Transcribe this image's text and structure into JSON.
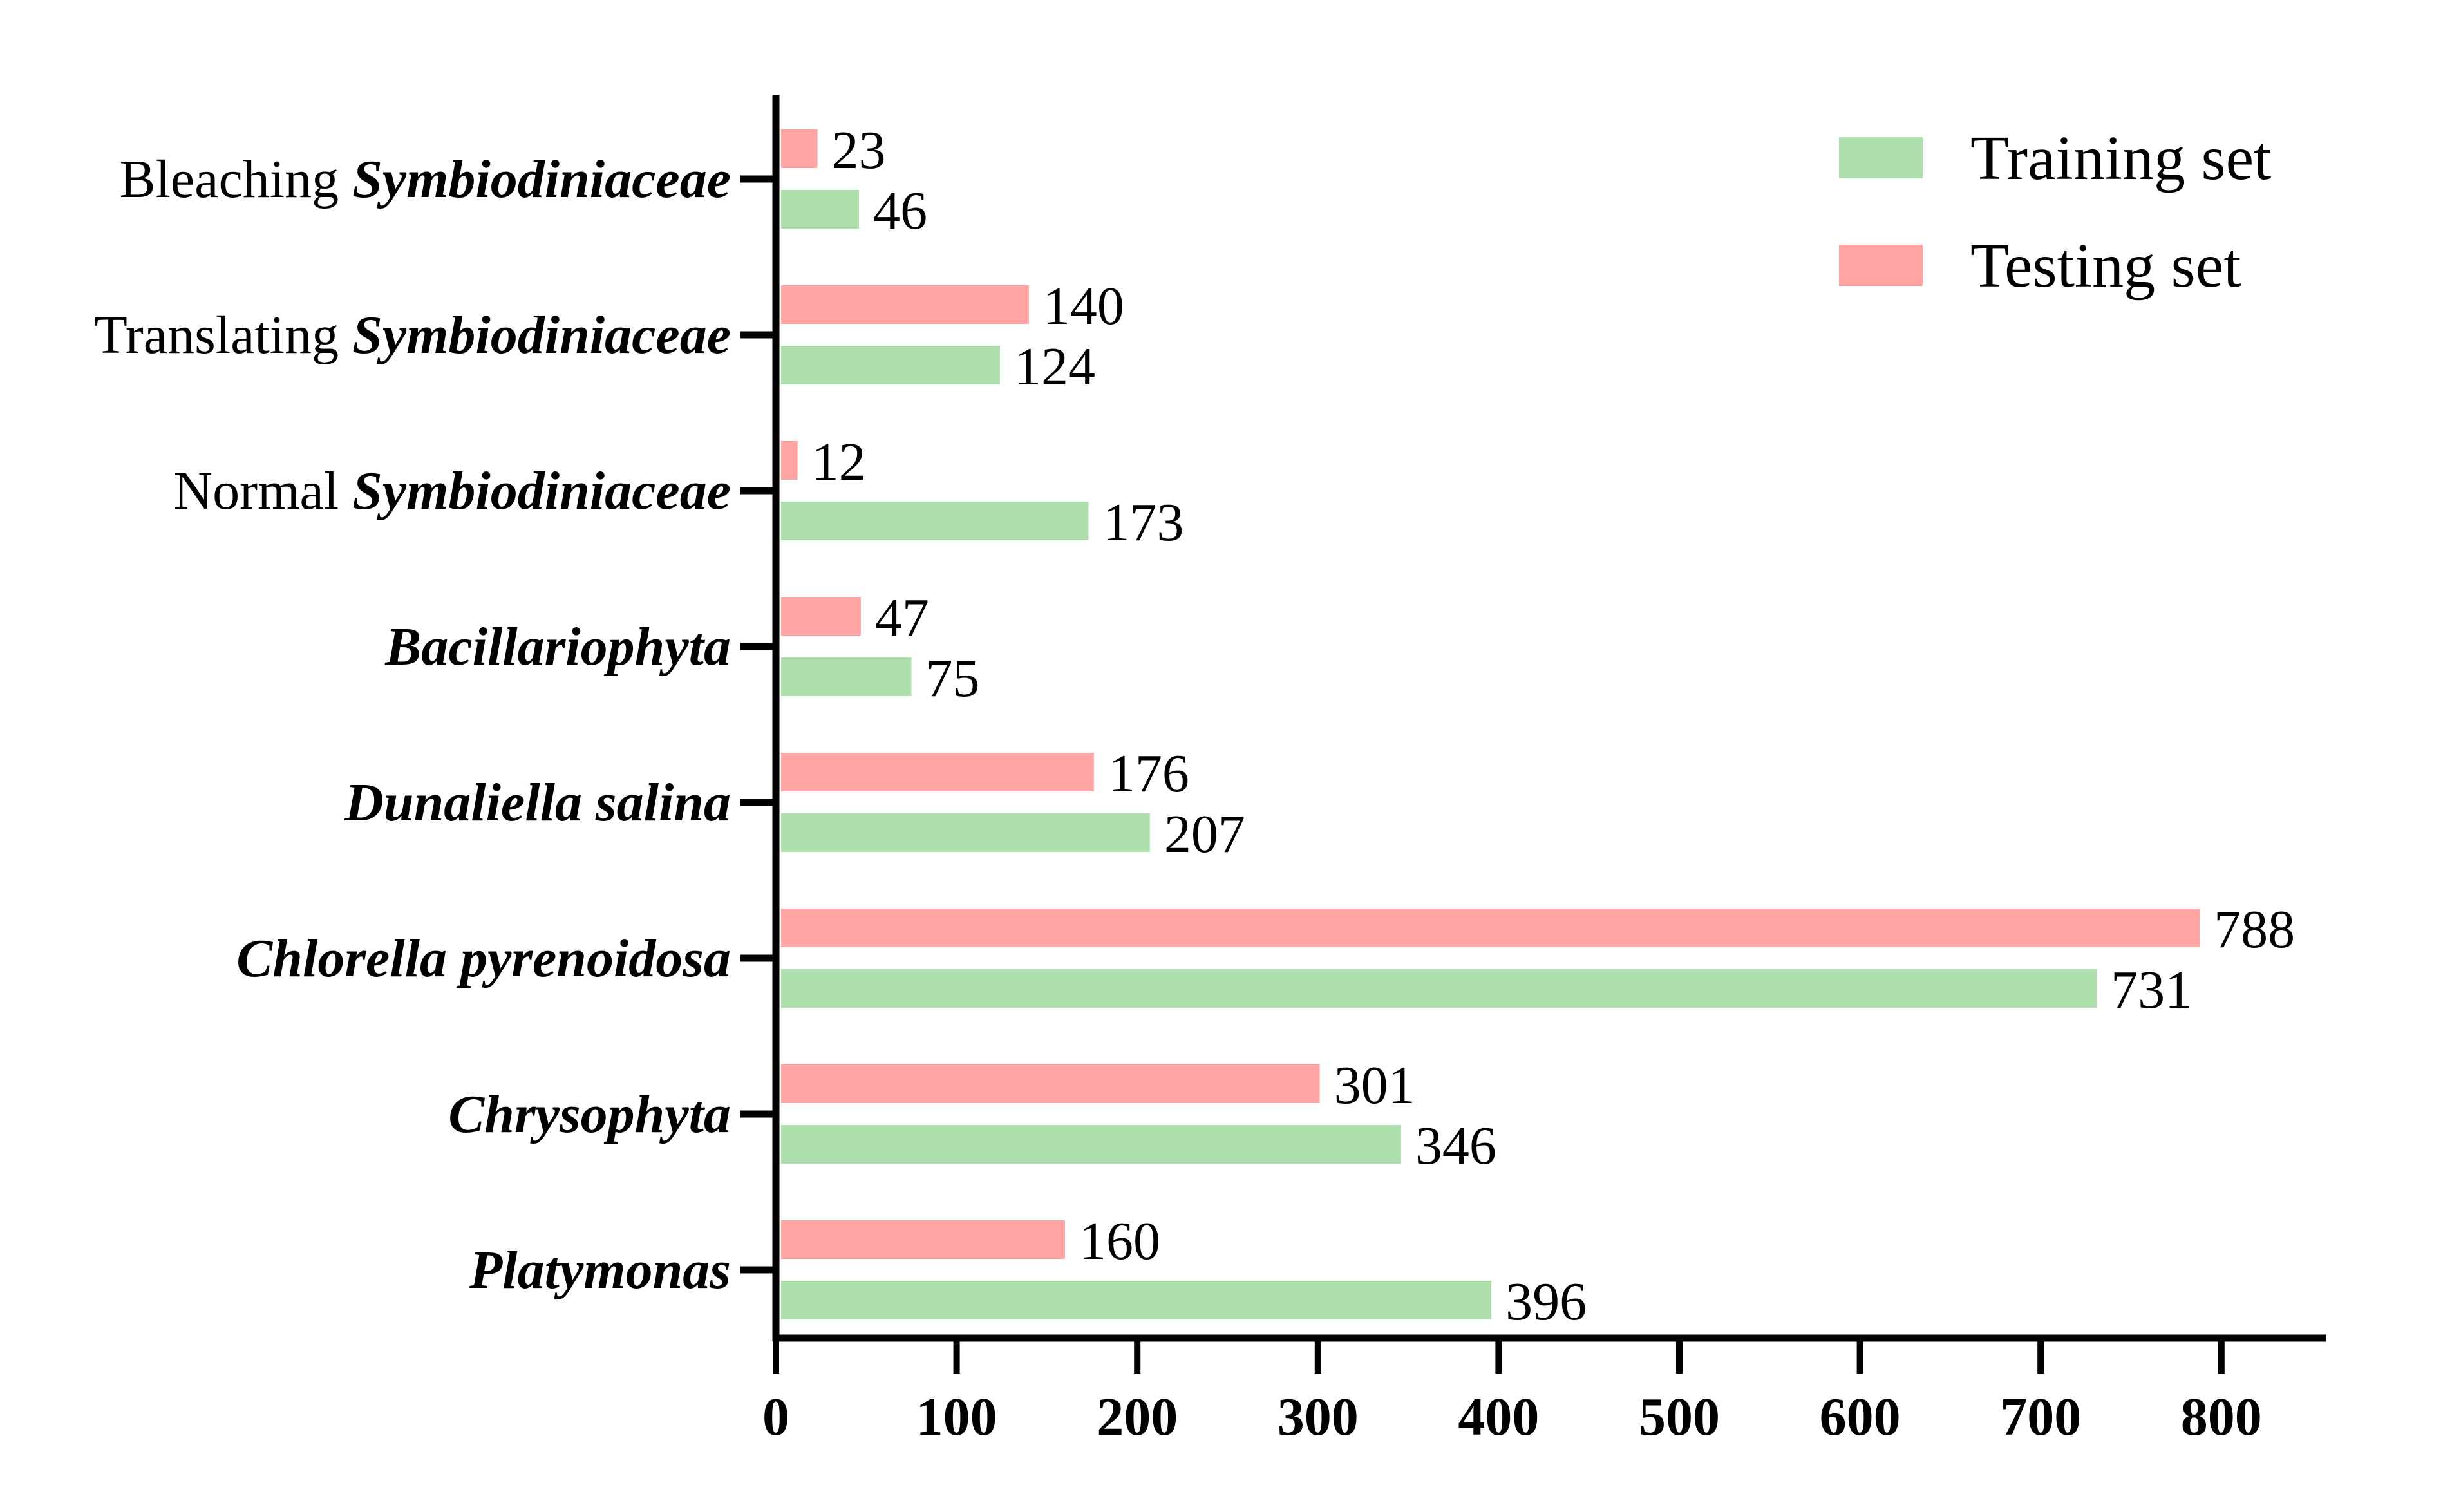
{
  "chart_data": {
    "type": "bar",
    "orientation": "horizontal",
    "categories": [
      {
        "id": "bleaching",
        "prefix": "Bleaching ",
        "italic": "Symbiodiniaceae"
      },
      {
        "id": "translating",
        "prefix": "Translating ",
        "italic": "Symbiodiniaceae"
      },
      {
        "id": "normal",
        "prefix": "Normal ",
        "italic": "Symbiodiniaceae"
      },
      {
        "id": "bacillariophyta",
        "prefix": "",
        "italic": "Bacillariophyta"
      },
      {
        "id": "dunaliella",
        "prefix": "",
        "italic": "Dunaliella salina"
      },
      {
        "id": "chlorella",
        "prefix": "",
        "italic": "Chlorella pyrenoidosa"
      },
      {
        "id": "chrysophyta",
        "prefix": "",
        "italic": "Chrysophyta"
      },
      {
        "id": "platymonas",
        "prefix": "",
        "italic": "Platymonas"
      }
    ],
    "series": [
      {
        "name": "Training set",
        "color": "#addfad",
        "values": [
          46,
          124,
          173,
          75,
          207,
          731,
          346,
          396
        ]
      },
      {
        "name": "Testing set",
        "color": "#ffa3a3",
        "values": [
          23,
          140,
          12,
          47,
          176,
          788,
          301,
          160
        ]
      }
    ],
    "xlim": [
      0,
      850
    ],
    "xticks": [
      0,
      100,
      200,
      300,
      400,
      500,
      600,
      700,
      800
    ],
    "title": "",
    "xlabel": "",
    "ylabel": "",
    "legend_position": "top-right",
    "grid": false
  }
}
